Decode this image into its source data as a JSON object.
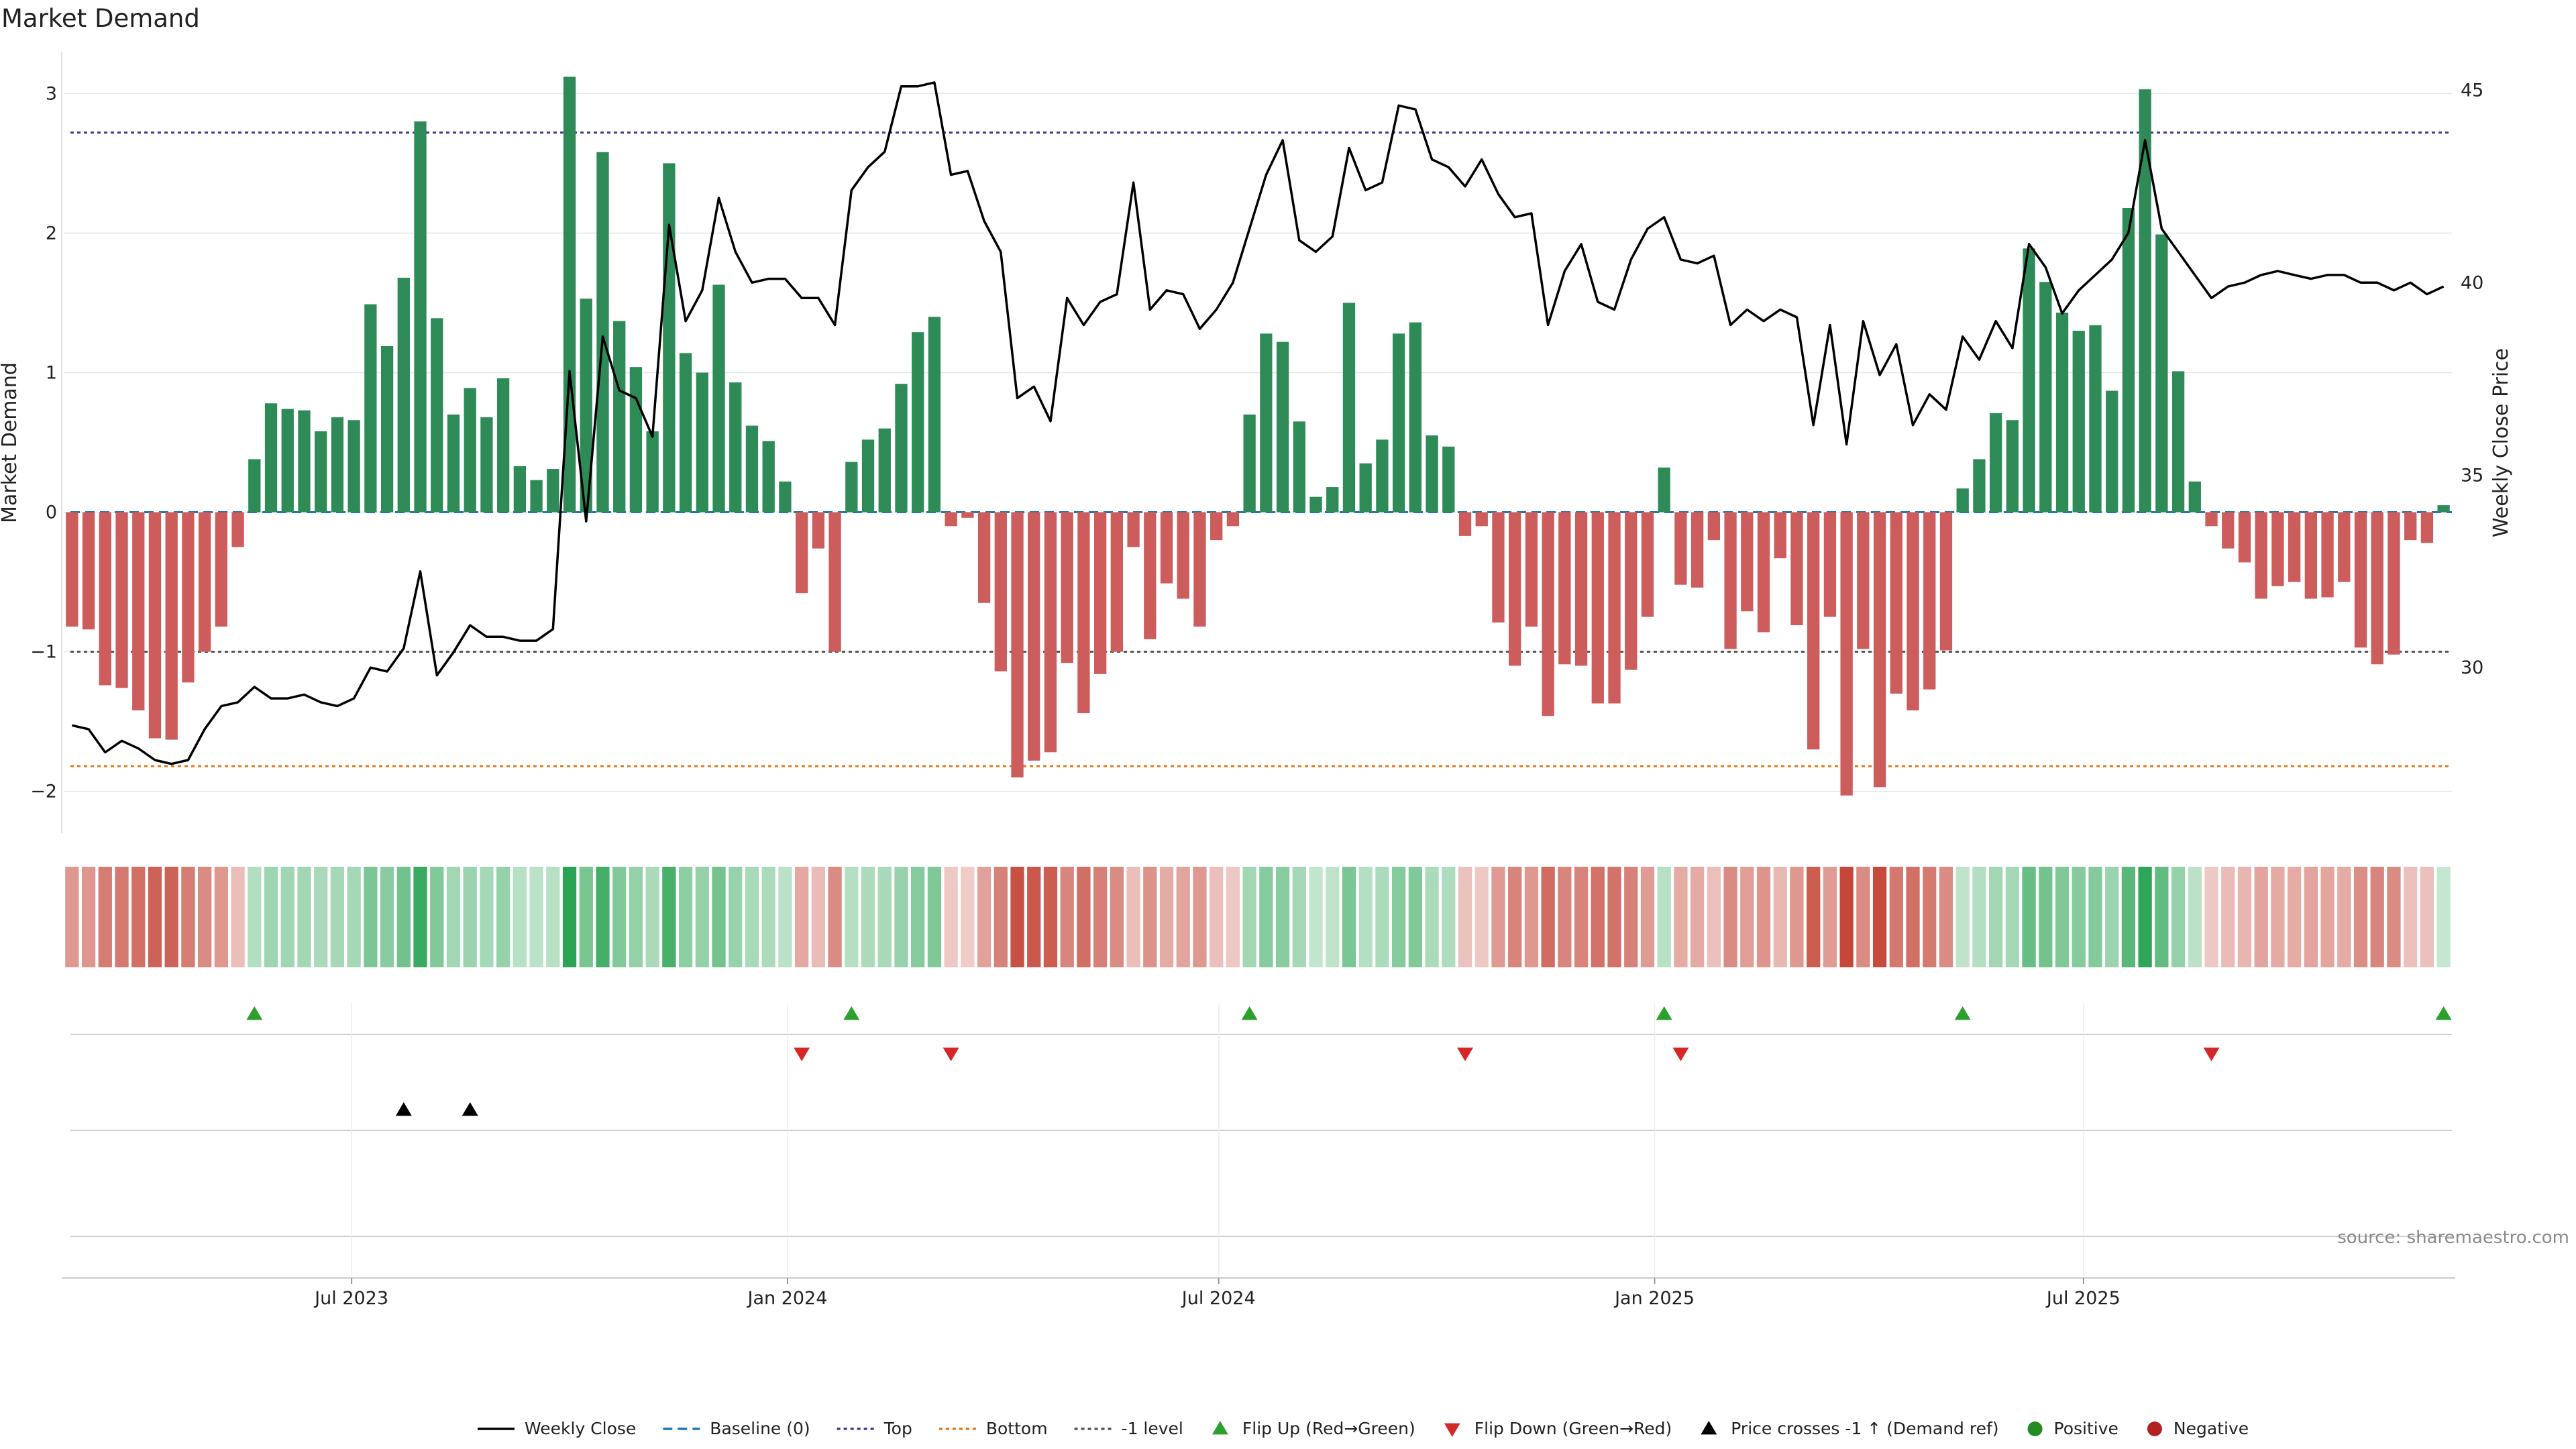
{
  "chart_data": {
    "type": "bar",
    "title": "Market Demand",
    "ylabel_left": "Market Demand",
    "ylabel_right": "Weekly Close Price",
    "source": "source: sharemaestro.com",
    "ylim_left": [
      -2.3,
      3.3
    ],
    "yticks_left": [
      -2,
      -1,
      0,
      1,
      2,
      3
    ],
    "ylim_right": [
      25.7,
      46.0
    ],
    "yticks_right": [
      30,
      35,
      40,
      45
    ],
    "x_start": "2023-03-05",
    "x_step_days": 7,
    "x_ticks": [
      {
        "date": "2023-07-01",
        "label": "Jul 2023"
      },
      {
        "date": "2024-01-01",
        "label": "Jan 2024"
      },
      {
        "date": "2024-07-01",
        "label": "Jul 2024"
      },
      {
        "date": "2025-01-01",
        "label": "Jan 2025"
      },
      {
        "date": "2025-07-01",
        "label": "Jul 2025"
      }
    ],
    "reference_lines": [
      {
        "name": "Baseline (0)",
        "value": 0,
        "axis": "left",
        "color": "#1f77b4",
        "style": "dashed"
      },
      {
        "name": "Top",
        "value": 2.72,
        "axis": "left",
        "color": "#3a3a9a",
        "style": "dotted"
      },
      {
        "name": "Bottom",
        "value": -1.82,
        "axis": "left",
        "color": "#e07b1a",
        "style": "dotted"
      },
      {
        "name": "-1 level",
        "value": -1,
        "axis": "left",
        "color": "#555555",
        "style": "dotted"
      }
    ],
    "colors": {
      "positive": "#2e8b57",
      "negative": "#cd5c5c",
      "price": "#000000",
      "flip_up": "#2ca02c",
      "flip_down": "#d62728",
      "cross": "#000000"
    },
    "demand": [
      -0.82,
      -0.84,
      -1.24,
      -1.26,
      -1.42,
      -1.62,
      -1.63,
      -1.22,
      -1.0,
      -0.82,
      -0.25,
      0.38,
      0.78,
      0.74,
      0.73,
      0.58,
      0.68,
      0.66,
      1.49,
      1.19,
      1.68,
      2.8,
      1.39,
      0.7,
      0.89,
      0.68,
      0.96,
      0.33,
      0.23,
      0.31,
      3.12,
      1.53,
      2.58,
      1.37,
      1.04,
      0.58,
      2.5,
      1.14,
      1.0,
      1.63,
      0.93,
      0.62,
      0.51,
      0.22,
      -0.58,
      -0.26,
      -1.0,
      0.36,
      0.52,
      0.6,
      0.92,
      1.29,
      1.4,
      -0.1,
      -0.04,
      -0.65,
      -1.14,
      -1.9,
      -1.78,
      -1.72,
      -1.08,
      -1.44,
      -1.16,
      -1.0,
      -0.25,
      -0.91,
      -0.51,
      -0.62,
      -0.82,
      -0.2,
      -0.1,
      0.7,
      1.28,
      1.22,
      0.65,
      0.11,
      0.18,
      1.5,
      0.35,
      0.52,
      1.28,
      1.36,
      0.55,
      0.47,
      -0.17,
      -0.1,
      -0.79,
      -1.1,
      -0.82,
      -1.46,
      -1.09,
      -1.1,
      -1.37,
      -1.37,
      -1.13,
      -0.75,
      0.32,
      -0.52,
      -0.54,
      -0.2,
      -0.98,
      -0.71,
      -0.86,
      -0.33,
      -0.81,
      -1.7,
      -0.75,
      -2.03,
      -0.98,
      -1.97,
      -1.3,
      -1.42,
      -1.27,
      -0.99,
      0.17,
      0.38,
      0.71,
      0.66,
      1.89,
      1.65,
      1.43,
      1.3,
      1.34,
      0.87,
      2.18,
      3.03,
      1.99,
      1.01,
      0.22,
      -0.1,
      -0.26,
      -0.36,
      -0.62,
      -0.53,
      -0.5,
      -0.62,
      -0.61,
      -0.5,
      -0.97,
      -1.09,
      -1.02,
      -0.2,
      -0.22,
      0.05
    ],
    "price": [
      28.5,
      28.4,
      27.8,
      28.1,
      27.9,
      27.6,
      27.5,
      27.6,
      28.4,
      29.0,
      29.1,
      29.5,
      29.2,
      29.2,
      29.3,
      29.1,
      29.0,
      29.2,
      30.0,
      29.9,
      30.5,
      32.5,
      29.8,
      30.4,
      31.1,
      30.8,
      30.8,
      30.7,
      30.7,
      31.0,
      37.7,
      33.8,
      38.6,
      37.2,
      37.0,
      36.0,
      41.5,
      39.0,
      39.8,
      42.2,
      40.8,
      40.0,
      40.1,
      40.1,
      39.6,
      39.6,
      38.9,
      42.4,
      43.0,
      43.4,
      45.1,
      45.1,
      45.2,
      42.8,
      42.9,
      41.6,
      40.8,
      37.0,
      37.3,
      36.4,
      39.6,
      38.9,
      39.5,
      39.7,
      42.6,
      39.3,
      39.8,
      39.7,
      38.8,
      39.3,
      40.0,
      41.4,
      42.8,
      43.7,
      41.1,
      40.8,
      41.2,
      43.5,
      42.4,
      42.6,
      44.6,
      44.5,
      43.2,
      43.0,
      42.5,
      43.2,
      42.3,
      41.7,
      41.8,
      38.9,
      40.3,
      41.0,
      39.5,
      39.3,
      40.6,
      41.4,
      41.7,
      40.6,
      40.5,
      40.7,
      38.9,
      39.3,
      39.0,
      39.3,
      39.1,
      36.3,
      38.9,
      35.8,
      39.0,
      37.6,
      38.4,
      36.3,
      37.1,
      36.7,
      38.6,
      38.0,
      39.0,
      38.3,
      41.0,
      40.4,
      39.2,
      39.8,
      40.2,
      40.6,
      41.3,
      43.7,
      41.4,
      40.8,
      40.2,
      39.6,
      39.9,
      40.0,
      40.2,
      40.3,
      40.2,
      40.1,
      40.2,
      40.2,
      40.0,
      40.0,
      39.8,
      40.0,
      39.7,
      39.9
    ],
    "flip_up_index": [
      11,
      47,
      71,
      96,
      114,
      143
    ],
    "flip_down_index": [
      44,
      53,
      84,
      97,
      129
    ],
    "price_cross_index": [
      20,
      24
    ],
    "legend": [
      {
        "label": "Weekly Close",
        "kind": "line",
        "color": "#000000",
        "style": "solid"
      },
      {
        "label": "Baseline (0)",
        "kind": "line",
        "color": "#1f77b4",
        "style": "dashed"
      },
      {
        "label": "Top",
        "kind": "line",
        "color": "#3a3a9a",
        "style": "dotted"
      },
      {
        "label": "Bottom",
        "kind": "line",
        "color": "#e07b1a",
        "style": "dotted"
      },
      {
        "label": "-1 level",
        "kind": "line",
        "color": "#555555",
        "style": "dotted"
      },
      {
        "label": "Flip Up (Red→Green)",
        "kind": "tri-up",
        "color": "#2ca02c"
      },
      {
        "label": "Flip Down (Green→Red)",
        "kind": "tri-down",
        "color": "#d62728"
      },
      {
        "label": "Price crosses -1 ↑ (Demand ref)",
        "kind": "tri-up",
        "color": "#000000"
      },
      {
        "label": "Positive",
        "kind": "dot",
        "color": "#228b22"
      },
      {
        "label": "Negative",
        "kind": "dot",
        "color": "#b22222"
      }
    ],
    "legend_position": "bottom-center",
    "grid": true
  }
}
